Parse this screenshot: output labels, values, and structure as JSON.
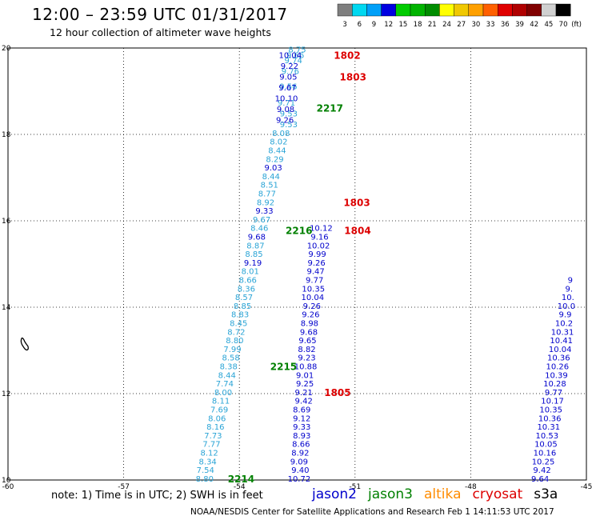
{
  "header": {
    "title": "12:00 – 23:59 UTC 01/31/2017",
    "subtitle": "12 hour collection of altimeter wave heights"
  },
  "colorbar": {
    "labels": [
      "3",
      "6",
      "9",
      "12",
      "15",
      "18",
      "21",
      "24",
      "27",
      "30",
      "33",
      "36",
      "39",
      "42",
      "45",
      "70"
    ],
    "unit": "(ft)",
    "colors": [
      "#7f7f7f",
      "#00d8f0",
      "#00a0f8",
      "#0000e0",
      "#00cc00",
      "#00b400",
      "#008c00",
      "#ffff00",
      "#f0c800",
      "#ffa000",
      "#ff6000",
      "#e00000",
      "#b00000",
      "#800000",
      "#d0d0d0",
      "#000000"
    ]
  },
  "footer": {
    "note": "note:  1) Time is in UTC;  2) SWH is in feet",
    "credit": "NOAA/NESDIS Center for Satellite Applications and Research    Feb  1 14:11:53 UTC 2017"
  },
  "satellites": [
    {
      "name": "jason2",
      "color": "#0000cc"
    },
    {
      "name": "jason3",
      "color": "#008000"
    },
    {
      "name": "altika",
      "color": "#ff8c00"
    },
    {
      "name": "cryosat",
      "color": "#dd0000"
    },
    {
      "name": "s3a",
      "color": "#000000"
    }
  ],
  "chart_data": {
    "type": "scatter",
    "xlim": [
      -60,
      -45
    ],
    "ylim": [
      10,
      20
    ],
    "x_ticks": [
      "-60",
      "-57",
      "-54",
      "-51",
      "-48",
      "-45"
    ],
    "y_ticks": [
      "10",
      "12",
      "14",
      "16",
      "18",
      "20"
    ],
    "tracks": [
      {
        "satellite": "jason2",
        "color": "#2aa4d6",
        "points": [
          {
            "lon": -54.9,
            "lat": 10.02,
            "label": "8.80"
          },
          {
            "lon": -54.88,
            "lat": 10.22,
            "label": "7.54"
          },
          {
            "lon": -54.82,
            "lat": 10.42,
            "label": "8.34"
          },
          {
            "lon": -54.78,
            "lat": 10.62,
            "label": "8.12"
          },
          {
            "lon": -54.72,
            "lat": 10.82,
            "label": "7.77"
          },
          {
            "lon": -54.68,
            "lat": 11.02,
            "label": "7.73"
          },
          {
            "lon": -54.62,
            "lat": 11.22,
            "label": "8.16"
          },
          {
            "lon": -54.58,
            "lat": 11.42,
            "label": "8.06"
          },
          {
            "lon": -54.52,
            "lat": 11.62,
            "label": "7.69"
          },
          {
            "lon": -54.48,
            "lat": 11.82,
            "label": "8.11"
          },
          {
            "lon": -54.42,
            "lat": 12.02,
            "label": "8.00"
          },
          {
            "lon": -54.38,
            "lat": 12.22,
            "label": "7.74"
          },
          {
            "lon": -54.32,
            "lat": 12.42,
            "label": "8.44"
          },
          {
            "lon": -54.28,
            "lat": 12.62,
            "label": "8.38"
          },
          {
            "lon": -54.22,
            "lat": 12.82,
            "label": "8.58"
          },
          {
            "lon": -54.18,
            "lat": 13.02,
            "label": "7.99"
          },
          {
            "lon": -54.12,
            "lat": 13.22,
            "label": "8.80"
          },
          {
            "lon": -54.08,
            "lat": 13.42,
            "label": "8.72"
          },
          {
            "lon": -54.02,
            "lat": 13.62,
            "label": "8.45"
          },
          {
            "lon": -53.98,
            "lat": 13.82,
            "label": "8.83"
          },
          {
            "lon": -53.92,
            "lat": 14.02,
            "label": "8.85"
          },
          {
            "lon": -53.88,
            "lat": 14.22,
            "label": "8.57"
          },
          {
            "lon": -53.82,
            "lat": 14.42,
            "label": "8.36"
          },
          {
            "lon": -53.78,
            "lat": 14.62,
            "label": "8.66"
          },
          {
            "lon": -53.72,
            "lat": 14.82,
            "label": "8.01"
          },
          {
            "lon": -53.62,
            "lat": 15.22,
            "label": "8.85"
          },
          {
            "lon": -53.58,
            "lat": 15.42,
            "label": "8.87"
          },
          {
            "lon": -53.48,
            "lat": 15.82,
            "label": "8.46"
          },
          {
            "lon": -53.42,
            "lat": 16.02,
            "label": "9.67"
          },
          {
            "lon": -53.32,
            "lat": 16.42,
            "label": "8.92"
          },
          {
            "lon": -53.28,
            "lat": 16.62,
            "label": "8.77"
          },
          {
            "lon": -53.22,
            "lat": 16.82,
            "label": "8.51"
          },
          {
            "lon": -53.18,
            "lat": 17.02,
            "label": "8.44"
          },
          {
            "lon": -53.08,
            "lat": 17.42,
            "label": "8.29"
          },
          {
            "lon": -53.02,
            "lat": 17.62,
            "label": "8.44"
          },
          {
            "lon": -52.98,
            "lat": 17.82,
            "label": "8.02"
          },
          {
            "lon": -52.92,
            "lat": 18.02,
            "label": "8.08"
          },
          {
            "lon": -52.72,
            "lat": 18.22,
            "label": "9.53"
          },
          {
            "lon": -52.72,
            "lat": 18.47,
            "label": "9.53"
          },
          {
            "lon": -52.78,
            "lat": 18.72,
            "label": "9.71"
          },
          {
            "lon": -52.68,
            "lat": 19.45,
            "label": "9.76"
          },
          {
            "lon": -52.6,
            "lat": 19.7,
            "label": "9.74"
          },
          {
            "lon": -52.5,
            "lat": 19.95,
            "label": "8.75"
          },
          {
            "lon": -52.55,
            "lat": 19.82,
            "label": "9.66"
          },
          {
            "lon": -52.73,
            "lat": 19.1,
            "label": "9.56"
          }
        ]
      },
      {
        "satellite": "jason2",
        "color": "#0000cc",
        "points": [
          {
            "lon": -52.45,
            "lat": 10.02,
            "label": "10.72"
          },
          {
            "lon": -52.42,
            "lat": 10.22,
            "label": "9.40"
          },
          {
            "lon": -52.45,
            "lat": 10.42,
            "label": "9.09"
          },
          {
            "lon": -52.42,
            "lat": 10.62,
            "label": "8.92"
          },
          {
            "lon": -52.4,
            "lat": 10.82,
            "label": "8.66"
          },
          {
            "lon": -52.38,
            "lat": 11.02,
            "label": "8.93"
          },
          {
            "lon": -52.38,
            "lat": 11.22,
            "label": "9.33"
          },
          {
            "lon": -52.38,
            "lat": 11.42,
            "label": "9.12"
          },
          {
            "lon": -52.38,
            "lat": 11.62,
            "label": "8.69"
          },
          {
            "lon": -52.33,
            "lat": 11.82,
            "label": "9.42"
          },
          {
            "lon": -52.33,
            "lat": 12.02,
            "label": "9.21"
          },
          {
            "lon": -52.3,
            "lat": 12.22,
            "label": "9.25"
          },
          {
            "lon": -52.3,
            "lat": 12.42,
            "label": "9.01"
          },
          {
            "lon": -52.28,
            "lat": 12.62,
            "label": "10.88"
          },
          {
            "lon": -52.25,
            "lat": 12.82,
            "label": "9.23"
          },
          {
            "lon": -52.25,
            "lat": 13.02,
            "label": "8.82"
          },
          {
            "lon": -52.23,
            "lat": 13.22,
            "label": "9.65"
          },
          {
            "lon": -52.2,
            "lat": 13.42,
            "label": "9.68"
          },
          {
            "lon": -52.18,
            "lat": 13.62,
            "label": "8.98"
          },
          {
            "lon": -52.15,
            "lat": 13.82,
            "label": "9.26"
          },
          {
            "lon": -52.12,
            "lat": 14.02,
            "label": "9.26"
          },
          {
            "lon": -52.1,
            "lat": 14.22,
            "label": "10.04"
          },
          {
            "lon": -52.08,
            "lat": 14.42,
            "label": "10.35"
          },
          {
            "lon": -52.05,
            "lat": 14.62,
            "label": "9.77"
          },
          {
            "lon": -52.02,
            "lat": 14.82,
            "label": "9.47"
          },
          {
            "lon": -52.0,
            "lat": 15.02,
            "label": "9.26"
          },
          {
            "lon": -51.98,
            "lat": 15.22,
            "label": "9.99"
          },
          {
            "lon": -51.95,
            "lat": 15.42,
            "label": "10.02"
          },
          {
            "lon": -53.55,
            "lat": 15.62,
            "label": "9.68"
          },
          {
            "lon": -53.65,
            "lat": 15.02,
            "label": "9.19"
          },
          {
            "lon": -53.35,
            "lat": 16.22,
            "label": "9.33"
          },
          {
            "lon": -51.92,
            "lat": 15.62,
            "label": "9.16"
          },
          {
            "lon": -53.12,
            "lat": 17.22,
            "label": "9.03"
          },
          {
            "lon": -51.88,
            "lat": 15.82,
            "label": "10.12"
          },
          {
            "lon": -52.82,
            "lat": 18.32,
            "label": "9.26"
          },
          {
            "lon": -52.8,
            "lat": 18.57,
            "label": "9.08"
          },
          {
            "lon": -52.78,
            "lat": 18.82,
            "label": "10.10"
          },
          {
            "lon": -52.75,
            "lat": 19.07,
            "label": "9.67"
          },
          {
            "lon": -52.73,
            "lat": 19.32,
            "label": "9.05"
          },
          {
            "lon": -52.7,
            "lat": 19.57,
            "label": "9.22"
          },
          {
            "lon": -52.68,
            "lat": 19.82,
            "label": "10.04"
          }
        ]
      },
      {
        "satellite": "jason2",
        "color": "#0000cc",
        "points": [
          {
            "lon": -46.2,
            "lat": 10.02,
            "label": "9.64"
          },
          {
            "lon": -46.15,
            "lat": 10.22,
            "label": "9.42"
          },
          {
            "lon": -46.12,
            "lat": 10.42,
            "label": "10.25"
          },
          {
            "lon": -46.08,
            "lat": 10.62,
            "label": "10.16"
          },
          {
            "lon": -46.05,
            "lat": 10.82,
            "label": "10.05"
          },
          {
            "lon": -46.02,
            "lat": 11.02,
            "label": "10.53"
          },
          {
            "lon": -45.98,
            "lat": 11.22,
            "label": "10.31"
          },
          {
            "lon": -45.95,
            "lat": 11.42,
            "label": "10.36"
          },
          {
            "lon": -45.92,
            "lat": 11.62,
            "label": "10.35"
          },
          {
            "lon": -45.88,
            "lat": 11.82,
            "label": "10.17"
          },
          {
            "lon": -45.85,
            "lat": 12.02,
            "label": "9.77"
          },
          {
            "lon": -45.82,
            "lat": 12.22,
            "label": "10.28"
          },
          {
            "lon": -45.78,
            "lat": 12.42,
            "label": "10.39"
          },
          {
            "lon": -45.75,
            "lat": 12.62,
            "label": "10.26"
          },
          {
            "lon": -45.72,
            "lat": 12.82,
            "label": "10.36"
          },
          {
            "lon": -45.68,
            "lat": 13.02,
            "label": "10.04"
          },
          {
            "lon": -45.65,
            "lat": 13.22,
            "label": "10.41"
          },
          {
            "lon": -45.62,
            "lat": 13.42,
            "label": "10.31"
          },
          {
            "lon": -45.58,
            "lat": 13.62,
            "label": "10.2"
          },
          {
            "lon": -45.55,
            "lat": 13.82,
            "label": "9.9"
          },
          {
            "lon": -45.52,
            "lat": 14.02,
            "label": "10.0"
          },
          {
            "lon": -45.48,
            "lat": 14.22,
            "label": "10."
          },
          {
            "lon": -45.45,
            "lat": 14.42,
            "label": "9."
          },
          {
            "lon": -45.42,
            "lat": 14.62,
            "label": "9"
          }
        ]
      }
    ],
    "time_labels": [
      {
        "lon": -54.3,
        "lat": 10.02,
        "text": "2214",
        "color": "#008000"
      },
      {
        "lon": -53.2,
        "lat": 12.62,
        "text": "2215",
        "color": "#008000"
      },
      {
        "lon": -52.8,
        "lat": 15.77,
        "text": "2216",
        "color": "#008000"
      },
      {
        "lon": -52.0,
        "lat": 18.6,
        "text": "2217",
        "color": "#008000"
      },
      {
        "lon": -51.8,
        "lat": 12.02,
        "text": "1805",
        "color": "#dd0000"
      },
      {
        "lon": -51.28,
        "lat": 15.77,
        "text": "1804",
        "color": "#dd0000"
      },
      {
        "lon": -51.3,
        "lat": 16.42,
        "text": "1803",
        "color": "#dd0000"
      },
      {
        "lon": -51.4,
        "lat": 19.32,
        "text": "1803",
        "color": "#dd0000"
      },
      {
        "lon": -51.55,
        "lat": 19.82,
        "text": "1802",
        "color": "#dd0000"
      }
    ]
  }
}
